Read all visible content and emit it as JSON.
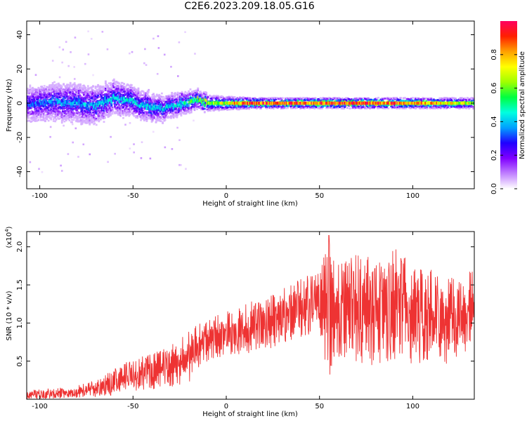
{
  "title": "C2E6.2023.209.18.05.G16",
  "chart_data": [
    {
      "type": "heatmap",
      "xlabel": "Height of straight line (km)",
      "ylabel": "Frequency (Hz)",
      "xlim": [
        -107,
        133
      ],
      "ylim": [
        -50,
        48
      ],
      "xticks": [
        -100,
        -50,
        0,
        50,
        100
      ],
      "yticks": [
        -40,
        -20,
        0,
        20,
        40
      ],
      "colorbar": {
        "label": "Normalized spectral amplitude",
        "range": [
          0,
          1
        ],
        "ticks": [
          "0.0",
          "0.2",
          "0.4",
          "0.6",
          "0.8"
        ],
        "colors": [
          "#ffffff",
          "#c080ff",
          "#8000ff",
          "#2000ff",
          "#00a0ff",
          "#00ffe0",
          "#00ff40",
          "#a0ff00",
          "#ffff00",
          "#ffa000",
          "#ff2000",
          "#ff0060"
        ]
      },
      "band_center_hz": [
        [
          -107,
          -1
        ],
        [
          -100,
          0
        ],
        [
          -90,
          1
        ],
        [
          -80,
          0
        ],
        [
          -70,
          -1
        ],
        [
          -60,
          3
        ],
        [
          -50,
          1
        ],
        [
          -40,
          -3
        ],
        [
          -30,
          -2
        ],
        [
          -22,
          0
        ],
        [
          -15,
          2
        ],
        [
          -10,
          0
        ],
        [
          0,
          0
        ],
        [
          10,
          0
        ],
        [
          50,
          0
        ],
        [
          100,
          0
        ],
        [
          133,
          0
        ]
      ],
      "band_halfwidth_hz": [
        [
          -107,
          6
        ],
        [
          -80,
          7
        ],
        [
          -60,
          6
        ],
        [
          -40,
          5
        ],
        [
          -20,
          4
        ],
        [
          -12,
          3
        ],
        [
          0,
          2.5
        ],
        [
          20,
          2
        ],
        [
          133,
          2
        ]
      ],
      "band_peak_amplitude": [
        [
          -107,
          0.35
        ],
        [
          -60,
          0.45
        ],
        [
          -30,
          0.45
        ],
        [
          -15,
          0.6
        ],
        [
          0,
          0.75
        ],
        [
          10,
          0.9
        ],
        [
          70,
          1.0
        ],
        [
          110,
          0.85
        ],
        [
          133,
          0.7
        ]
      ]
    },
    {
      "type": "line",
      "xlabel": "Height of straight line (km)",
      "ylabel": "SNR (10 * v/v)",
      "y_multiplier": "x10^4",
      "xlim": [
        -107,
        133
      ],
      "ylim": [
        0,
        2.2
      ],
      "xticks": [
        -100,
        -50,
        0,
        50,
        100
      ],
      "yticks": [
        "0.5",
        "1.0",
        "1.5",
        "2.0"
      ],
      "color": "#ee3333",
      "series": [
        {
          "envelope_x": [
            -107,
            -90,
            -80,
            -70,
            -60,
            -50,
            -40,
            -30,
            -20,
            -15,
            -10,
            -5,
            0,
            10,
            20,
            30,
            40,
            50,
            55,
            60,
            70,
            80,
            90,
            100,
            110,
            120,
            128,
            133
          ],
          "envelope_min": [
            0.0,
            0.01,
            0.02,
            0.03,
            0.05,
            0.1,
            0.12,
            0.15,
            0.2,
            0.35,
            0.5,
            0.55,
            0.55,
            0.6,
            0.6,
            0.75,
            0.8,
            0.8,
            0.3,
            0.5,
            0.5,
            0.4,
            0.5,
            0.45,
            0.5,
            0.45,
            0.5,
            0.6
          ],
          "envelope_max": [
            0.12,
            0.15,
            0.18,
            0.25,
            0.4,
            0.55,
            0.6,
            0.7,
            0.9,
            1.0,
            1.05,
            1.1,
            1.15,
            1.25,
            1.35,
            1.45,
            1.6,
            1.75,
            2.15,
            1.8,
            1.9,
            1.85,
            2.0,
            1.8,
            1.7,
            1.6,
            1.55,
            1.85
          ]
        }
      ],
      "peak": [
        55,
        2.15
      ]
    }
  ]
}
